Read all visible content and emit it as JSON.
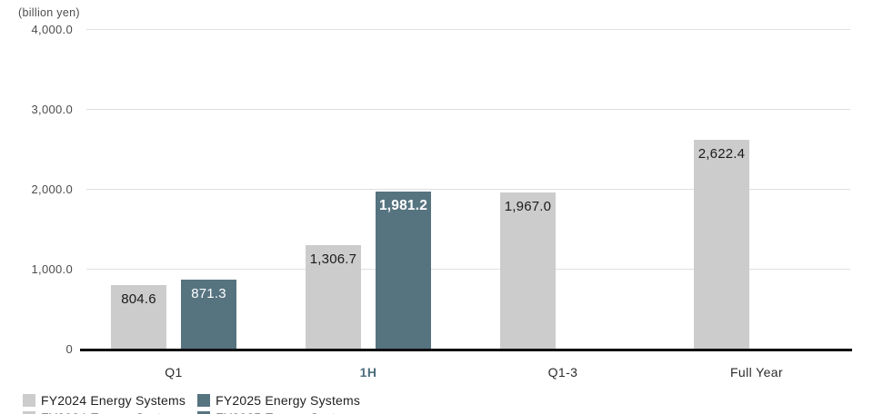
{
  "chart_data": {
    "type": "bar",
    "title": "",
    "unit_label": "(billion yen)",
    "categories": [
      "Q1",
      "1H",
      "Q1-3",
      "Full Year"
    ],
    "emphasized_category_index": 1,
    "ylim": [
      0,
      4000
    ],
    "yticks": [
      {
        "value": 4000,
        "label": "4,000.0"
      },
      {
        "value": 3000,
        "label": "3,000.0"
      },
      {
        "value": 2000,
        "label": "2,000.0"
      },
      {
        "value": 1000,
        "label": "1,000.0"
      },
      {
        "value": 0,
        "label": "0"
      }
    ],
    "grid": true,
    "legend_position": "bottom-left",
    "series": [
      {
        "name": "FY2024 Energy Systems",
        "color": "#cccccc",
        "value_text_color": "#1a1a1a",
        "values": [
          804.6,
          1306.7,
          1967.0,
          2622.4
        ],
        "value_labels": [
          "804.6",
          "1,306.7",
          "1,967.0",
          "2,622.4"
        ]
      },
      {
        "name": "FY2025 Energy Systems",
        "color": "#567380",
        "value_text_color": "#ffffff",
        "values": [
          871.3,
          1981.2,
          null,
          null
        ],
        "value_labels": [
          "871.3",
          "1,981.2",
          "",
          ""
        ]
      }
    ]
  },
  "legend": {
    "items": [
      {
        "label": "FY2024 Energy Systems",
        "color": "#cccccc"
      },
      {
        "label": "FY2025 Energy Systems",
        "color": "#567380"
      }
    ]
  },
  "colors": {
    "background": "#ffffff",
    "gridline": "#e0e0e0",
    "axis_line": "#111111",
    "tick_text": "#4d4d4d",
    "category_text": "#2b2b2b",
    "emphasis_text": "#4e6e7d",
    "legend_text": "#1f1f1f"
  }
}
